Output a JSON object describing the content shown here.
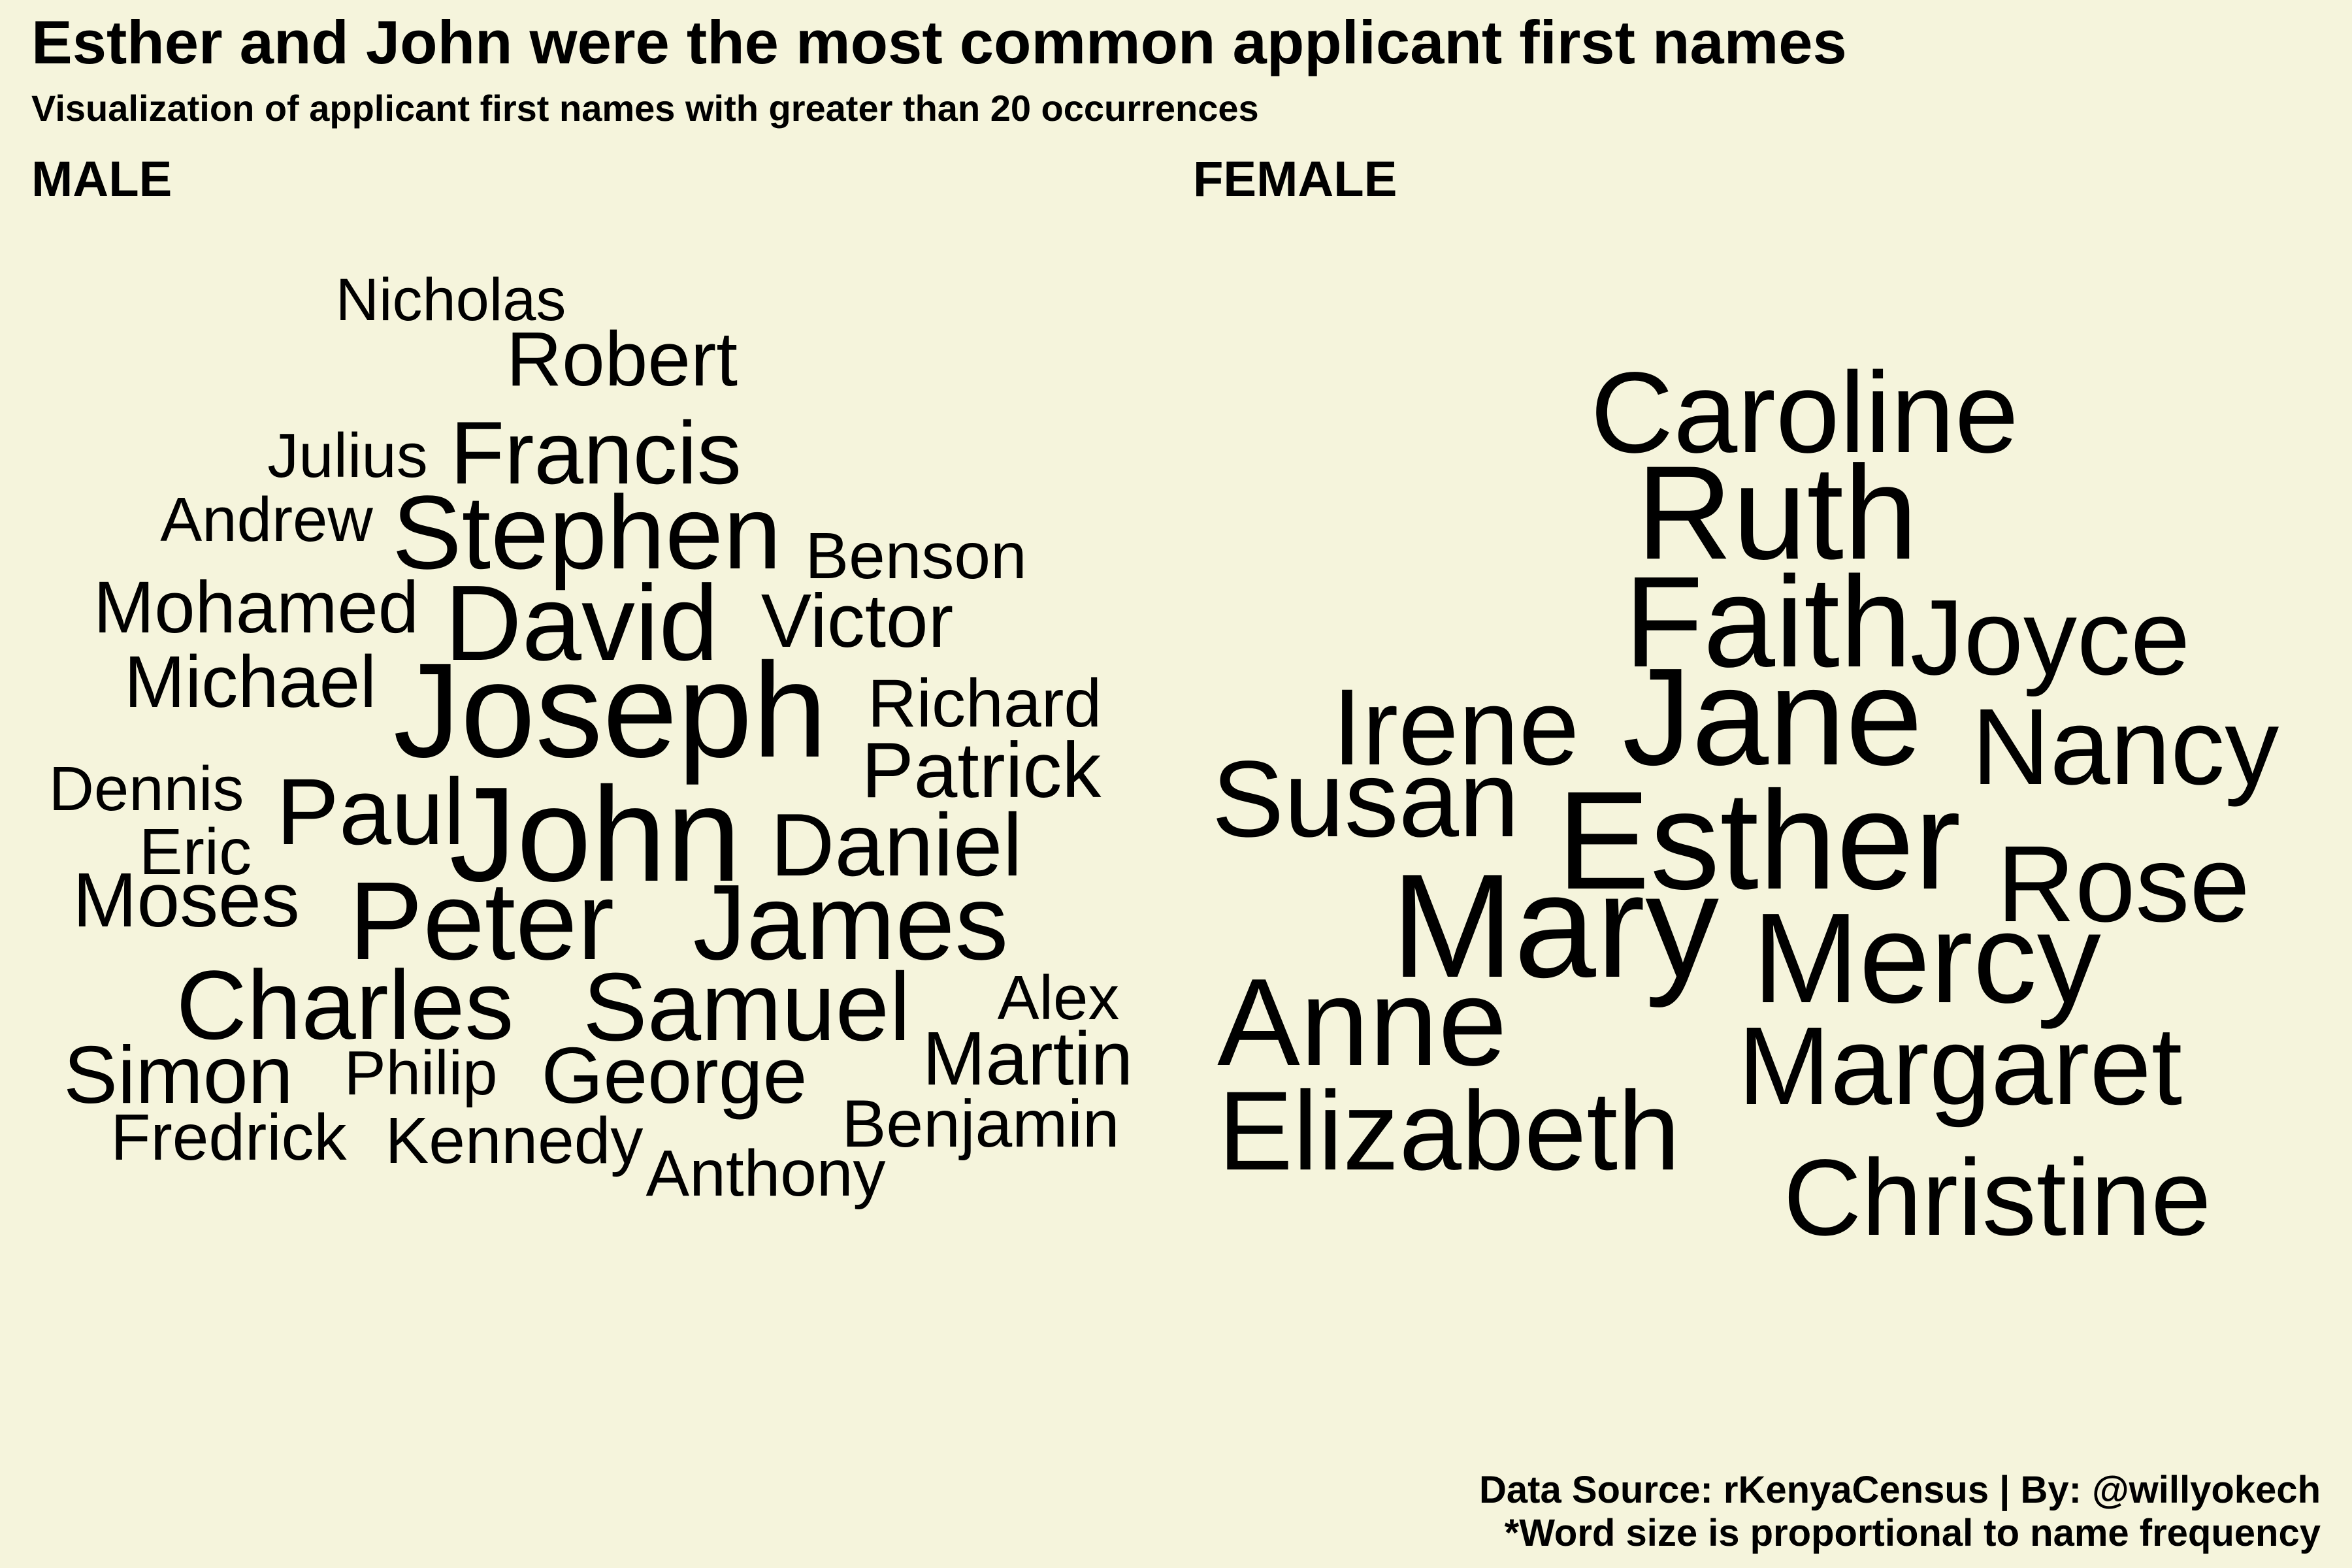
{
  "title": "Esther and John were the most common applicant first names",
  "subtitle": "Visualization of applicant first names with greater than 20 occurrences",
  "caption": {
    "source": "Data Source: rKenyaCensus | By: @willyokech",
    "note": "*Word size is proportional to name frequency"
  },
  "colors": {
    "background": "#f5f4dc",
    "text": "#000000"
  },
  "chart_data": {
    "type": "wordcloud",
    "panels": [
      {
        "label": "MALE",
        "words": [
          "Nicholas",
          "Robert",
          "Julius",
          "Francis",
          "Andrew",
          "Stephen",
          "Benson",
          "Mohamed",
          "David",
          "Victor",
          "Michael",
          "Joseph",
          "Richard",
          "Patrick",
          "Dennis",
          "Paul",
          "John",
          "Daniel",
          "Eric",
          "Moses",
          "Peter",
          "James",
          "Charles",
          "Samuel",
          "Alex",
          "Simon",
          "Philip",
          "George",
          "Martin",
          "Fredrick",
          "Kennedy",
          "Benjamin",
          "Anthony"
        ]
      },
      {
        "label": "FEMALE",
        "words": [
          "Caroline",
          "Ruth",
          "Faith",
          "Joyce",
          "Irene",
          "Jane",
          "Nancy",
          "Susan",
          "Esther",
          "Rose",
          "Mary",
          "Mercy",
          "Anne",
          "Margaret",
          "Elizabeth",
          "Christine"
        ]
      }
    ]
  }
}
